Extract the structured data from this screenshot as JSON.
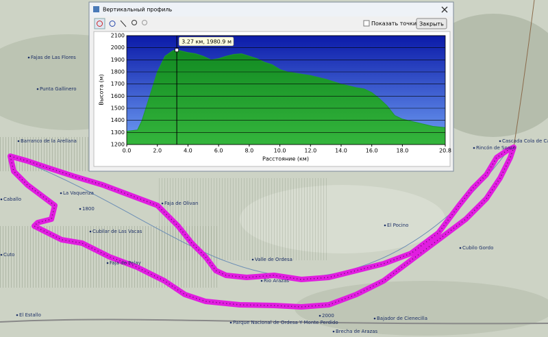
{
  "window": {
    "title": "Вертикальный профиль",
    "checkbox_label": "Показать точки трека",
    "close_button": "Закрыть"
  },
  "chart_data": {
    "type": "area",
    "xlabel": "Расстояние  (км)",
    "ylabel": "Высота (м)",
    "x": [
      0,
      0.7,
      1.0,
      1.5,
      2.0,
      2.5,
      3.0,
      3.27,
      3.5,
      4.0,
      4.5,
      5.0,
      5.5,
      6.0,
      6.5,
      7.0,
      7.5,
      8.0,
      8.5,
      9.0,
      9.5,
      10.0,
      10.5,
      11.0,
      11.5,
      12.0,
      13.0,
      14.0,
      15.0,
      15.5,
      16.0,
      16.5,
      17.0,
      17.5,
      18.0,
      19.0,
      20.0,
      20.8
    ],
    "values": [
      1310,
      1320,
      1400,
      1600,
      1800,
      1930,
      1975,
      1980.9,
      1975,
      1960,
      1950,
      1930,
      1900,
      1910,
      1930,
      1945,
      1950,
      1930,
      1910,
      1880,
      1860,
      1820,
      1800,
      1790,
      1780,
      1770,
      1740,
      1700,
      1670,
      1660,
      1630,
      1580,
      1520,
      1440,
      1410,
      1380,
      1350,
      1340
    ],
    "color": "#1f9a2c",
    "xlim": [
      0,
      20.8
    ],
    "ylim": [
      1200,
      2100
    ],
    "xticks": [
      {
        "value": 0,
        "label": "0.0"
      },
      {
        "value": 2,
        "label": "2.0"
      },
      {
        "value": 4,
        "label": "4.0"
      },
      {
        "value": 6,
        "label": "6.0"
      },
      {
        "value": 8,
        "label": "8.0"
      },
      {
        "value": 10,
        "label": "10.0"
      },
      {
        "value": 12,
        "label": "12.0"
      },
      {
        "value": 14,
        "label": "14.0"
      },
      {
        "value": 16,
        "label": "16.0"
      },
      {
        "value": 18,
        "label": "18.0"
      },
      {
        "value": 20.8,
        "label": "20.8"
      }
    ],
    "yticks": [
      1200,
      1300,
      1400,
      1500,
      1600,
      1700,
      1800,
      1900,
      2000,
      2100
    ],
    "grid": true,
    "marker": {
      "x": 3.27,
      "y": 1980.9,
      "label": "3.27 км, 1980.9 м"
    }
  },
  "map": {
    "labels": [
      "Fajas de Las Flores",
      "Punta Gallinero",
      "Barranco de la Arellana",
      "La Vaqueriza",
      "Cubilar de Las Vacas",
      "Faja de Pelay",
      "Valle de Ordesa",
      "Río Arazas",
      "El Pocino",
      "Cascada Cola de Caballo",
      "Rincón de Soaso",
      "Cubilo Gordo",
      "Bajador de Cienecilla",
      "Brecha de Arazas",
      "El Estallo",
      "Parque Nacional de Ordesa Y Monte Perdido",
      "Cuto",
      "Caballo",
      "Faja de Olivan",
      "2000",
      "1800"
    ]
  }
}
